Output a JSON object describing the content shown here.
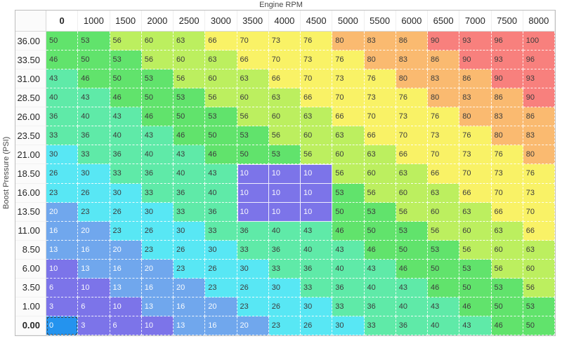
{
  "axis": {
    "x_title": "Engine RPM",
    "y_title": "Boost Pressure (PSI)"
  },
  "table": {
    "column_headers": [
      "0",
      "1000",
      "1500",
      "2000",
      "2500",
      "3000",
      "3500",
      "4000",
      "4500",
      "5000",
      "5500",
      "6000",
      "6500",
      "7000",
      "7500",
      "8000"
    ],
    "row_headers": [
      "36.00",
      "33.50",
      "31.00",
      "28.50",
      "26.00",
      "23.50",
      "21.00",
      "18.50",
      "16.00",
      "13.50",
      "11.00",
      "8.50",
      "6.00",
      "3.50",
      "1.00",
      "0.00"
    ],
    "rows": [
      [
        50,
        53,
        56,
        60,
        63,
        66,
        70,
        73,
        76,
        80,
        83,
        86,
        90,
        93,
        96,
        100
      ],
      [
        46,
        50,
        53,
        56,
        60,
        63,
        66,
        70,
        73,
        76,
        80,
        83,
        86,
        90,
        93,
        96
      ],
      [
        43,
        46,
        50,
        53,
        56,
        60,
        63,
        66,
        70,
        73,
        76,
        80,
        83,
        86,
        90,
        93
      ],
      [
        40,
        43,
        46,
        50,
        53,
        56,
        60,
        63,
        66,
        70,
        73,
        76,
        80,
        83,
        86,
        90
      ],
      [
        36,
        40,
        43,
        46,
        50,
        53,
        56,
        60,
        63,
        66,
        70,
        73,
        76,
        80,
        83,
        86
      ],
      [
        33,
        36,
        40,
        43,
        46,
        50,
        53,
        56,
        60,
        63,
        66,
        70,
        73,
        76,
        80,
        83
      ],
      [
        30,
        33,
        36,
        40,
        43,
        46,
        50,
        53,
        56,
        60,
        63,
        66,
        70,
        73,
        76,
        80
      ],
      [
        26,
        30,
        33,
        36,
        40,
        43,
        10,
        10,
        10,
        56,
        60,
        63,
        66,
        70,
        73,
        76
      ],
      [
        23,
        26,
        30,
        33,
        36,
        40,
        10,
        10,
        10,
        53,
        56,
        60,
        63,
        66,
        70,
        73
      ],
      [
        20,
        23,
        26,
        30,
        33,
        36,
        10,
        10,
        10,
        50,
        53,
        56,
        60,
        63,
        66,
        70
      ],
      [
        16,
        20,
        23,
        26,
        30,
        33,
        36,
        40,
        43,
        46,
        50,
        53,
        56,
        60,
        63,
        66
      ],
      [
        13,
        16,
        20,
        23,
        26,
        30,
        33,
        36,
        40,
        43,
        46,
        50,
        53,
        56,
        60,
        63
      ],
      [
        10,
        13,
        16,
        20,
        23,
        26,
        30,
        33,
        36,
        40,
        43,
        46,
        50,
        53,
        56,
        60
      ],
      [
        6,
        10,
        13,
        16,
        20,
        23,
        26,
        30,
        33,
        36,
        40,
        43,
        46,
        50,
        53,
        56
      ],
      [
        3,
        6,
        10,
        13,
        16,
        20,
        23,
        26,
        30,
        33,
        36,
        40,
        43,
        46,
        50,
        53
      ],
      [
        0,
        3,
        6,
        10,
        13,
        16,
        20,
        23,
        26,
        30,
        33,
        36,
        40,
        43,
        46,
        50
      ]
    ],
    "selected": {
      "row_index": 15,
      "col_index": 0,
      "value": 0
    },
    "override_block": {
      "row_indices": [
        7,
        8,
        9
      ],
      "col_indices": [
        6,
        7,
        8
      ],
      "value": 10
    }
  },
  "colors": {
    "selected_cell": "#2493ee",
    "selection_outline": "#4a4a4a",
    "dark_text_min": 23,
    "bands": [
      {
        "min": 90,
        "color": "#f8807d"
      },
      {
        "min": 80,
        "color": "#faba70"
      },
      {
        "min": 66,
        "color": "#f9f266"
      },
      {
        "min": 56,
        "color": "#bcef5f"
      },
      {
        "min": 46,
        "color": "#61e36c"
      },
      {
        "min": 33,
        "color": "#5feaa8"
      },
      {
        "min": 23,
        "color": "#58e7f4"
      },
      {
        "min": 13,
        "color": "#70a7ed"
      },
      {
        "min": 3,
        "color": "#7c74e9"
      },
      {
        "min": 0,
        "color": "#2493ee"
      }
    ]
  }
}
